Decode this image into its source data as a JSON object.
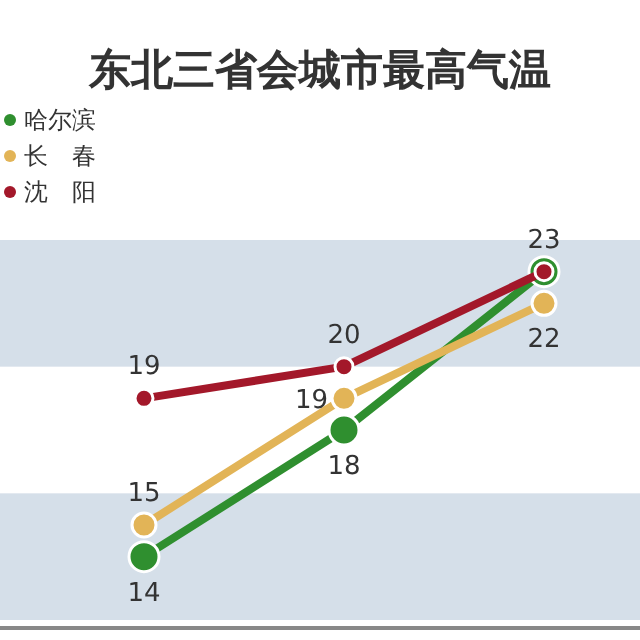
{
  "chart_data": {
    "type": "line",
    "title": "东北三省会城市最高气温",
    "categories": [
      null,
      null,
      null
    ],
    "series": [
      {
        "name": "哈尔滨",
        "color": "#2f8f2f",
        "values": [
          14,
          18,
          23
        ],
        "value_labels": [
          "14",
          "18",
          null
        ]
      },
      {
        "name": "长　春",
        "color": "#e2b457",
        "values": [
          15,
          19,
          22
        ],
        "value_labels": [
          "15",
          "19",
          "22"
        ]
      },
      {
        "name": "沈　阳",
        "color": "#a3182a",
        "values": [
          19,
          20,
          23
        ],
        "value_labels": [
          "19",
          "20",
          "23"
        ]
      }
    ],
    "legend": "top left",
    "marker": "circle",
    "line_style": "solid",
    "bands": [
      {
        "axis": "y",
        "from": 12,
        "to": 16,
        "color": "#d5dfe9"
      },
      {
        "axis": "y",
        "from": 20,
        "to": 24,
        "color": "#d5dfe9"
      }
    ]
  }
}
